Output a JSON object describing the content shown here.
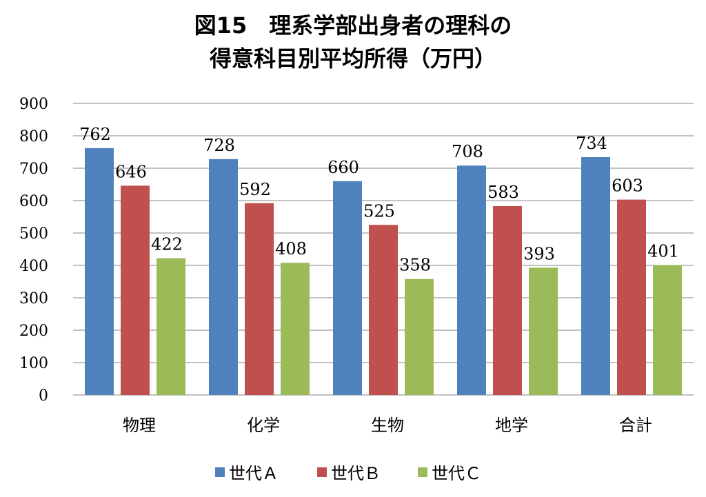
{
  "chart_data": {
    "type": "bar",
    "title_line1": "図15　理系学部出身者の理科の",
    "title_line2": "得意科目別平均所得（万円）",
    "categories": [
      "物理",
      "化学",
      "生物",
      "地学",
      "合計"
    ],
    "series": [
      {
        "name": "世代Ａ",
        "color": "#4f81bd",
        "values": [
          762,
          728,
          660,
          708,
          734
        ]
      },
      {
        "name": "世代Ｂ",
        "color": "#c0504d",
        "values": [
          646,
          592,
          525,
          583,
          603
        ]
      },
      {
        "name": "世代Ｃ",
        "color": "#9bbb59",
        "values": [
          422,
          408,
          358,
          393,
          401
        ]
      }
    ],
    "ylim": [
      0,
      900
    ],
    "yticks": [
      "0",
      "100",
      "200",
      "300",
      "400",
      "500",
      "600",
      "700",
      "800",
      "900"
    ],
    "grid": true,
    "legend_position": "bottom"
  }
}
